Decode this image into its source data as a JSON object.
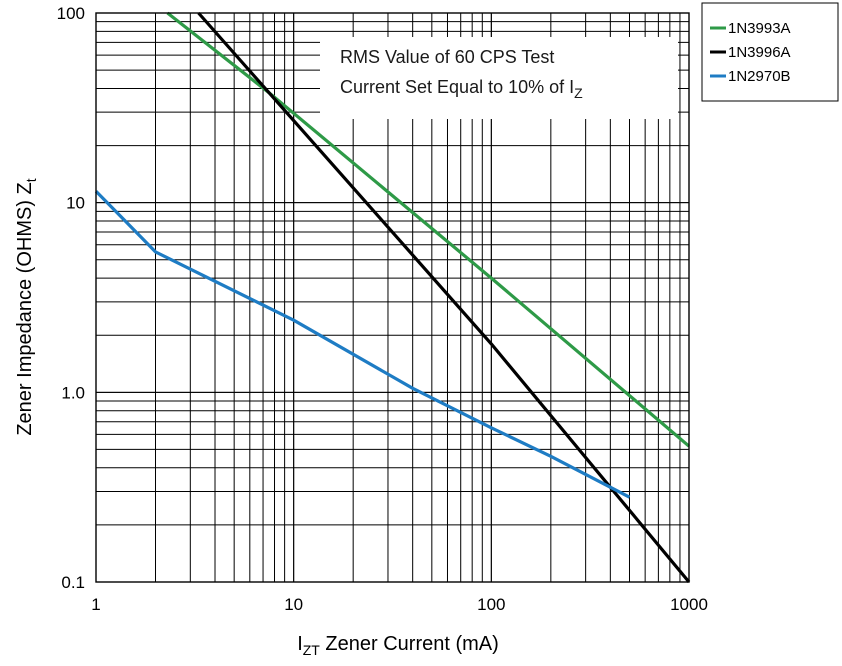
{
  "chart_data": {
    "type": "line",
    "xscale": "log",
    "yscale": "log",
    "xlim": [
      1,
      1000
    ],
    "ylim": [
      0.1,
      100
    ],
    "grid": true,
    "x_ticks": [
      "1",
      "10",
      "100",
      "1000"
    ],
    "y_ticks": [
      "0.1",
      "1.0",
      "10",
      "100"
    ],
    "xlabel": {
      "sym": "I",
      "sub": "ZT",
      "rest": " Zener Current (mA)"
    },
    "ylabel": {
      "main": "Zener Impedance (OHMS) Z",
      "sub": "t"
    },
    "annotation": {
      "line1": "RMS Value of 60 CPS Test",
      "line2_prefix": "Current Set Equal to 10% of I",
      "line2_sub": "Z"
    },
    "legend_position": "top-right-outside",
    "series": [
      {
        "name": "1N3993A",
        "color": "#2e9a47",
        "x": [
          2.3,
          7.5,
          100,
          1000
        ],
        "y": [
          100,
          38,
          4.0,
          0.52
        ]
      },
      {
        "name": "1N3996A",
        "color": "#000000",
        "x": [
          3.3,
          7.5,
          100,
          1000
        ],
        "y": [
          100,
          38,
          1.8,
          0.1
        ]
      },
      {
        "name": "1N2970B",
        "color": "#1e7cc4",
        "x": [
          1,
          2,
          10,
          40,
          100,
          200,
          500
        ],
        "y": [
          11.5,
          5.5,
          2.4,
          1.05,
          0.65,
          0.46,
          0.28
        ]
      }
    ]
  }
}
